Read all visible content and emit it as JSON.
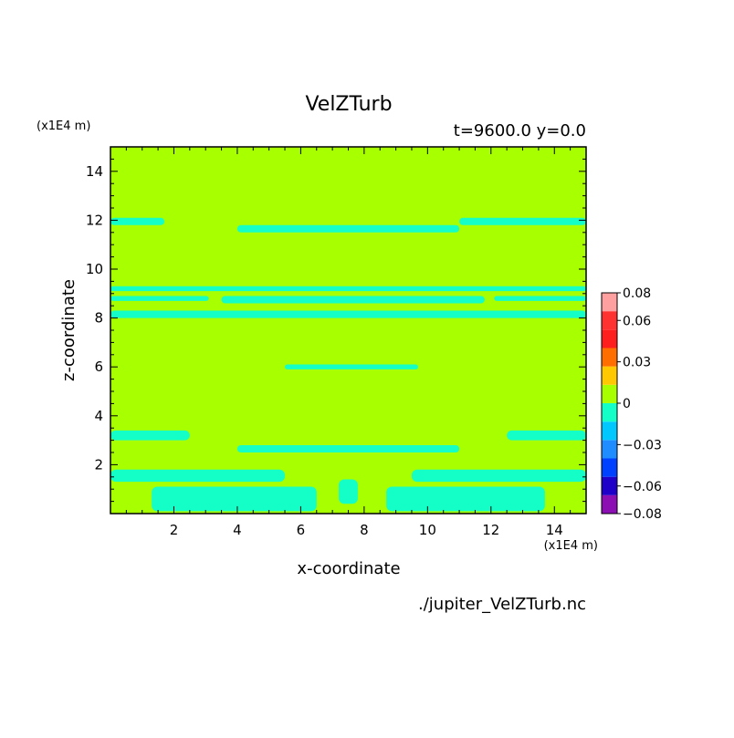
{
  "header": {
    "title": "VelZTurb",
    "subtitle": "t=9600.0 y=0.0",
    "y_scale_label": "(x1E4 m)",
    "x_scale_label": "(x1E4 m)",
    "footer_file": "./jupiter_VelZTurb.nc"
  },
  "colorbar": {
    "colors": [
      "#8c0fb4",
      "#1f00c8",
      "#0040ff",
      "#1f8cff",
      "#00c8ff",
      "#14ffc8",
      "#a8ff00",
      "#ffc800",
      "#ff6e00",
      "#ff1e1e",
      "#ff3232",
      "#ffa0a0"
    ],
    "tick_labels": [
      "0.08",
      "0.06",
      "0.03",
      "0",
      "−0.03",
      "−0.06",
      "−0.08"
    ],
    "tick_values": [
      0.08,
      0.06,
      0.03,
      0,
      -0.03,
      -0.06,
      -0.08
    ]
  },
  "chart_data": {
    "type": "heatmap",
    "title": "VelZTurb",
    "subtitle": "t=9600.0 y=0.0",
    "xlabel": "x-coordinate",
    "ylabel": "z-coordinate",
    "x_units": "(x1E4 m)",
    "z_units": "(x1E4 m)",
    "xlim": [
      0,
      15
    ],
    "ylim": [
      0,
      15
    ],
    "x_ticks": [
      2,
      4,
      6,
      8,
      10,
      12,
      14
    ],
    "y_ticks": [
      2,
      4,
      6,
      8,
      10,
      12,
      14
    ],
    "background_level": 0,
    "background_color": "#a8ff00",
    "anomaly_level": -0.03,
    "anomaly_color": "#14ffc8",
    "regions": [
      {
        "x": [
          0,
          1.7
        ],
        "z": [
          11.8,
          12.1
        ]
      },
      {
        "x": [
          4,
          11
        ],
        "z": [
          11.5,
          11.8
        ]
      },
      {
        "x": [
          11,
          15
        ],
        "z": [
          11.8,
          12.1
        ]
      },
      {
        "x": [
          0,
          15
        ],
        "z": [
          9.1,
          9.3
        ]
      },
      {
        "x": [
          0,
          3.1
        ],
        "z": [
          8.7,
          8.9
        ]
      },
      {
        "x": [
          3.5,
          11.8
        ],
        "z": [
          8.6,
          8.9
        ]
      },
      {
        "x": [
          12.1,
          15
        ],
        "z": [
          8.7,
          8.9
        ]
      },
      {
        "x": [
          0,
          15
        ],
        "z": [
          8.0,
          8.3
        ]
      },
      {
        "x": [
          5.5,
          9.7
        ],
        "z": [
          5.9,
          6.1
        ]
      },
      {
        "x": [
          0,
          2.5
        ],
        "z": [
          3.0,
          3.4
        ]
      },
      {
        "x": [
          12.5,
          15
        ],
        "z": [
          3.0,
          3.4
        ]
      },
      {
        "x": [
          4,
          11
        ],
        "z": [
          2.5,
          2.8
        ]
      },
      {
        "x": [
          0,
          5.5
        ],
        "z": [
          1.3,
          1.8
        ]
      },
      {
        "x": [
          9.5,
          15
        ],
        "z": [
          1.3,
          1.8
        ]
      },
      {
        "x": [
          1.3,
          6.5
        ],
        "z": [
          0.1,
          1.1
        ]
      },
      {
        "x": [
          8.7,
          13.7
        ],
        "z": [
          0.1,
          1.1
        ]
      },
      {
        "x": [
          7.2,
          7.8
        ],
        "z": [
          0.4,
          1.4
        ]
      }
    ]
  }
}
